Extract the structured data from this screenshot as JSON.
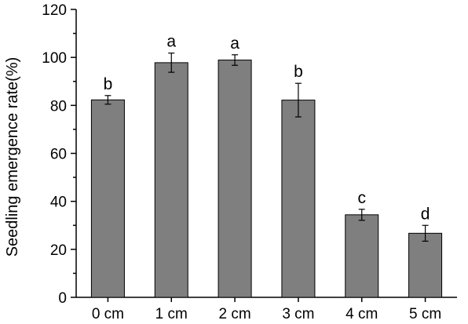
{
  "chart_data": {
    "type": "bar",
    "title": "",
    "xlabel": "",
    "ylabel": "Seedling emergence rate(%)",
    "ylim": [
      0,
      120
    ],
    "yticks": [
      0,
      20,
      40,
      60,
      80,
      100,
      120
    ],
    "categories": [
      "0 cm",
      "1 cm",
      "2 cm",
      "3 cm",
      "4 cm",
      "5 cm"
    ],
    "values": [
      82.3,
      97.8,
      98.9,
      82.2,
      34.4,
      26.7
    ],
    "errors": [
      1.8,
      4.0,
      2.2,
      7.0,
      2.3,
      3.3
    ],
    "significance": [
      "b",
      "a",
      "a",
      "b",
      "c",
      "d"
    ],
    "bar_color": "#7f7f7f",
    "grid": false,
    "legend": "none"
  }
}
